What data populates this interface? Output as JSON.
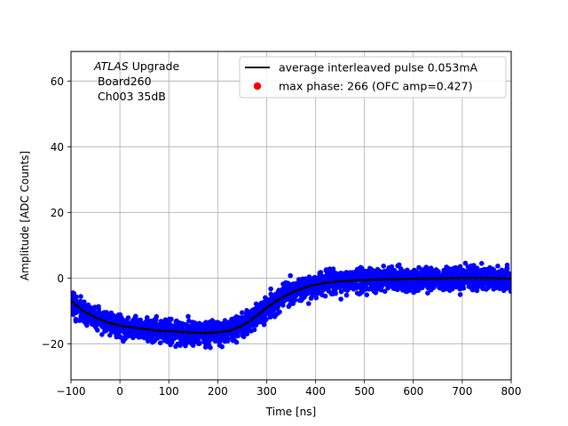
{
  "chart_data": {
    "type": "scatter",
    "title": "",
    "xlabel": "Time [ns]",
    "ylabel": "Amplitude [ADC Counts]",
    "xlim": [
      -100,
      800
    ],
    "ylim": [
      -31,
      69
    ],
    "grid": true,
    "xticks": [
      -100,
      0,
      100,
      200,
      300,
      400,
      500,
      600,
      700,
      800
    ],
    "yticks": [
      -20,
      0,
      20,
      40,
      60
    ],
    "annotation": {
      "line1_italic": "ATLAS",
      "line1_rest": " Upgrade",
      "line2": " Board260",
      "line3": " Ch003 35dB"
    },
    "legend": {
      "position": "top-right",
      "entries": [
        {
          "label": "average interleaved pulse 0.053mA",
          "marker": "line",
          "color": "#000000"
        },
        {
          "label": "max phase: 266 (OFC amp=0.427)",
          "marker": "dot",
          "color": "#ff0000"
        }
      ]
    },
    "series": [
      {
        "name": "average interleaved pulse 0.053mA",
        "style": "line+dots",
        "color": "#000000",
        "x": [
          -100,
          -75,
          -50,
          -25,
          0,
          25,
          50,
          75,
          100,
          125,
          150,
          175,
          200,
          225,
          250,
          275,
          300,
          325,
          350,
          375,
          400,
          425,
          450,
          475,
          500,
          550,
          600,
          650,
          700,
          750,
          800
        ],
        "y": [
          -7,
          -10,
          -12,
          -13.5,
          -14.5,
          -15,
          -15.5,
          -16,
          -16.2,
          -16.4,
          -16.6,
          -16.7,
          -16.5,
          -16,
          -14.5,
          -12,
          -9,
          -6.5,
          -4.5,
          -3,
          -2,
          -1.3,
          -1,
          -0.8,
          -0.6,
          -0.4,
          -0.2,
          -0.1,
          0,
          0,
          -0.2
        ]
      },
      {
        "name": "samples",
        "style": "scatter",
        "color": "#0000ff",
        "note": "dense band of points around the average pulse, spread approx ±5 ADC counts"
      }
    ]
  }
}
